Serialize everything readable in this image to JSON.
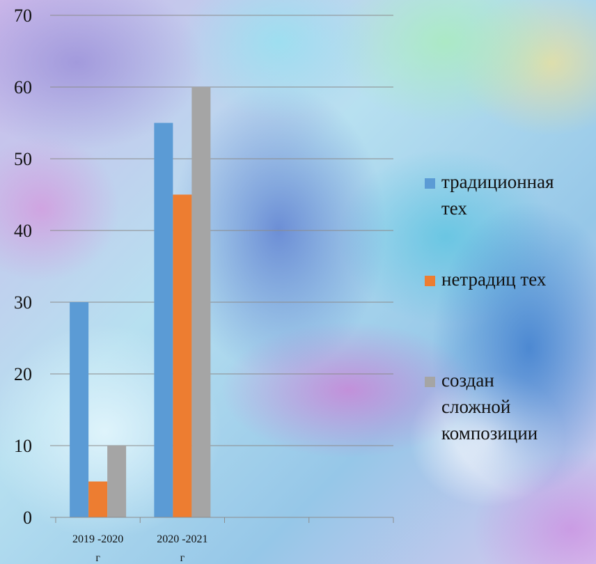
{
  "chart_data": {
    "type": "bar",
    "title": "",
    "xlabel": "",
    "ylabel": "",
    "ylim": [
      0,
      70
    ],
    "yticks": [
      0,
      10,
      20,
      30,
      40,
      50,
      60,
      70
    ],
    "categories": [
      [
        "2019 -2020",
        "г"
      ],
      [
        "2020 -2021",
        "г"
      ],
      [
        "",
        ""
      ],
      [
        "",
        ""
      ]
    ],
    "series": [
      {
        "name": [
          "традиционная",
          "тех"
        ],
        "color": "#5b9bd5",
        "values": [
          30,
          55,
          null,
          null
        ]
      },
      {
        "name": [
          "нетрадиц тех"
        ],
        "color": "#ed7d31",
        "values": [
          5,
          45,
          null,
          null
        ]
      },
      {
        "name": [
          "создан",
          "сложной",
          "композиции"
        ],
        "color": "#a5a5a5",
        "values": [
          10,
          60,
          null,
          null
        ]
      }
    ],
    "grid": true,
    "legend_position": "right"
  }
}
